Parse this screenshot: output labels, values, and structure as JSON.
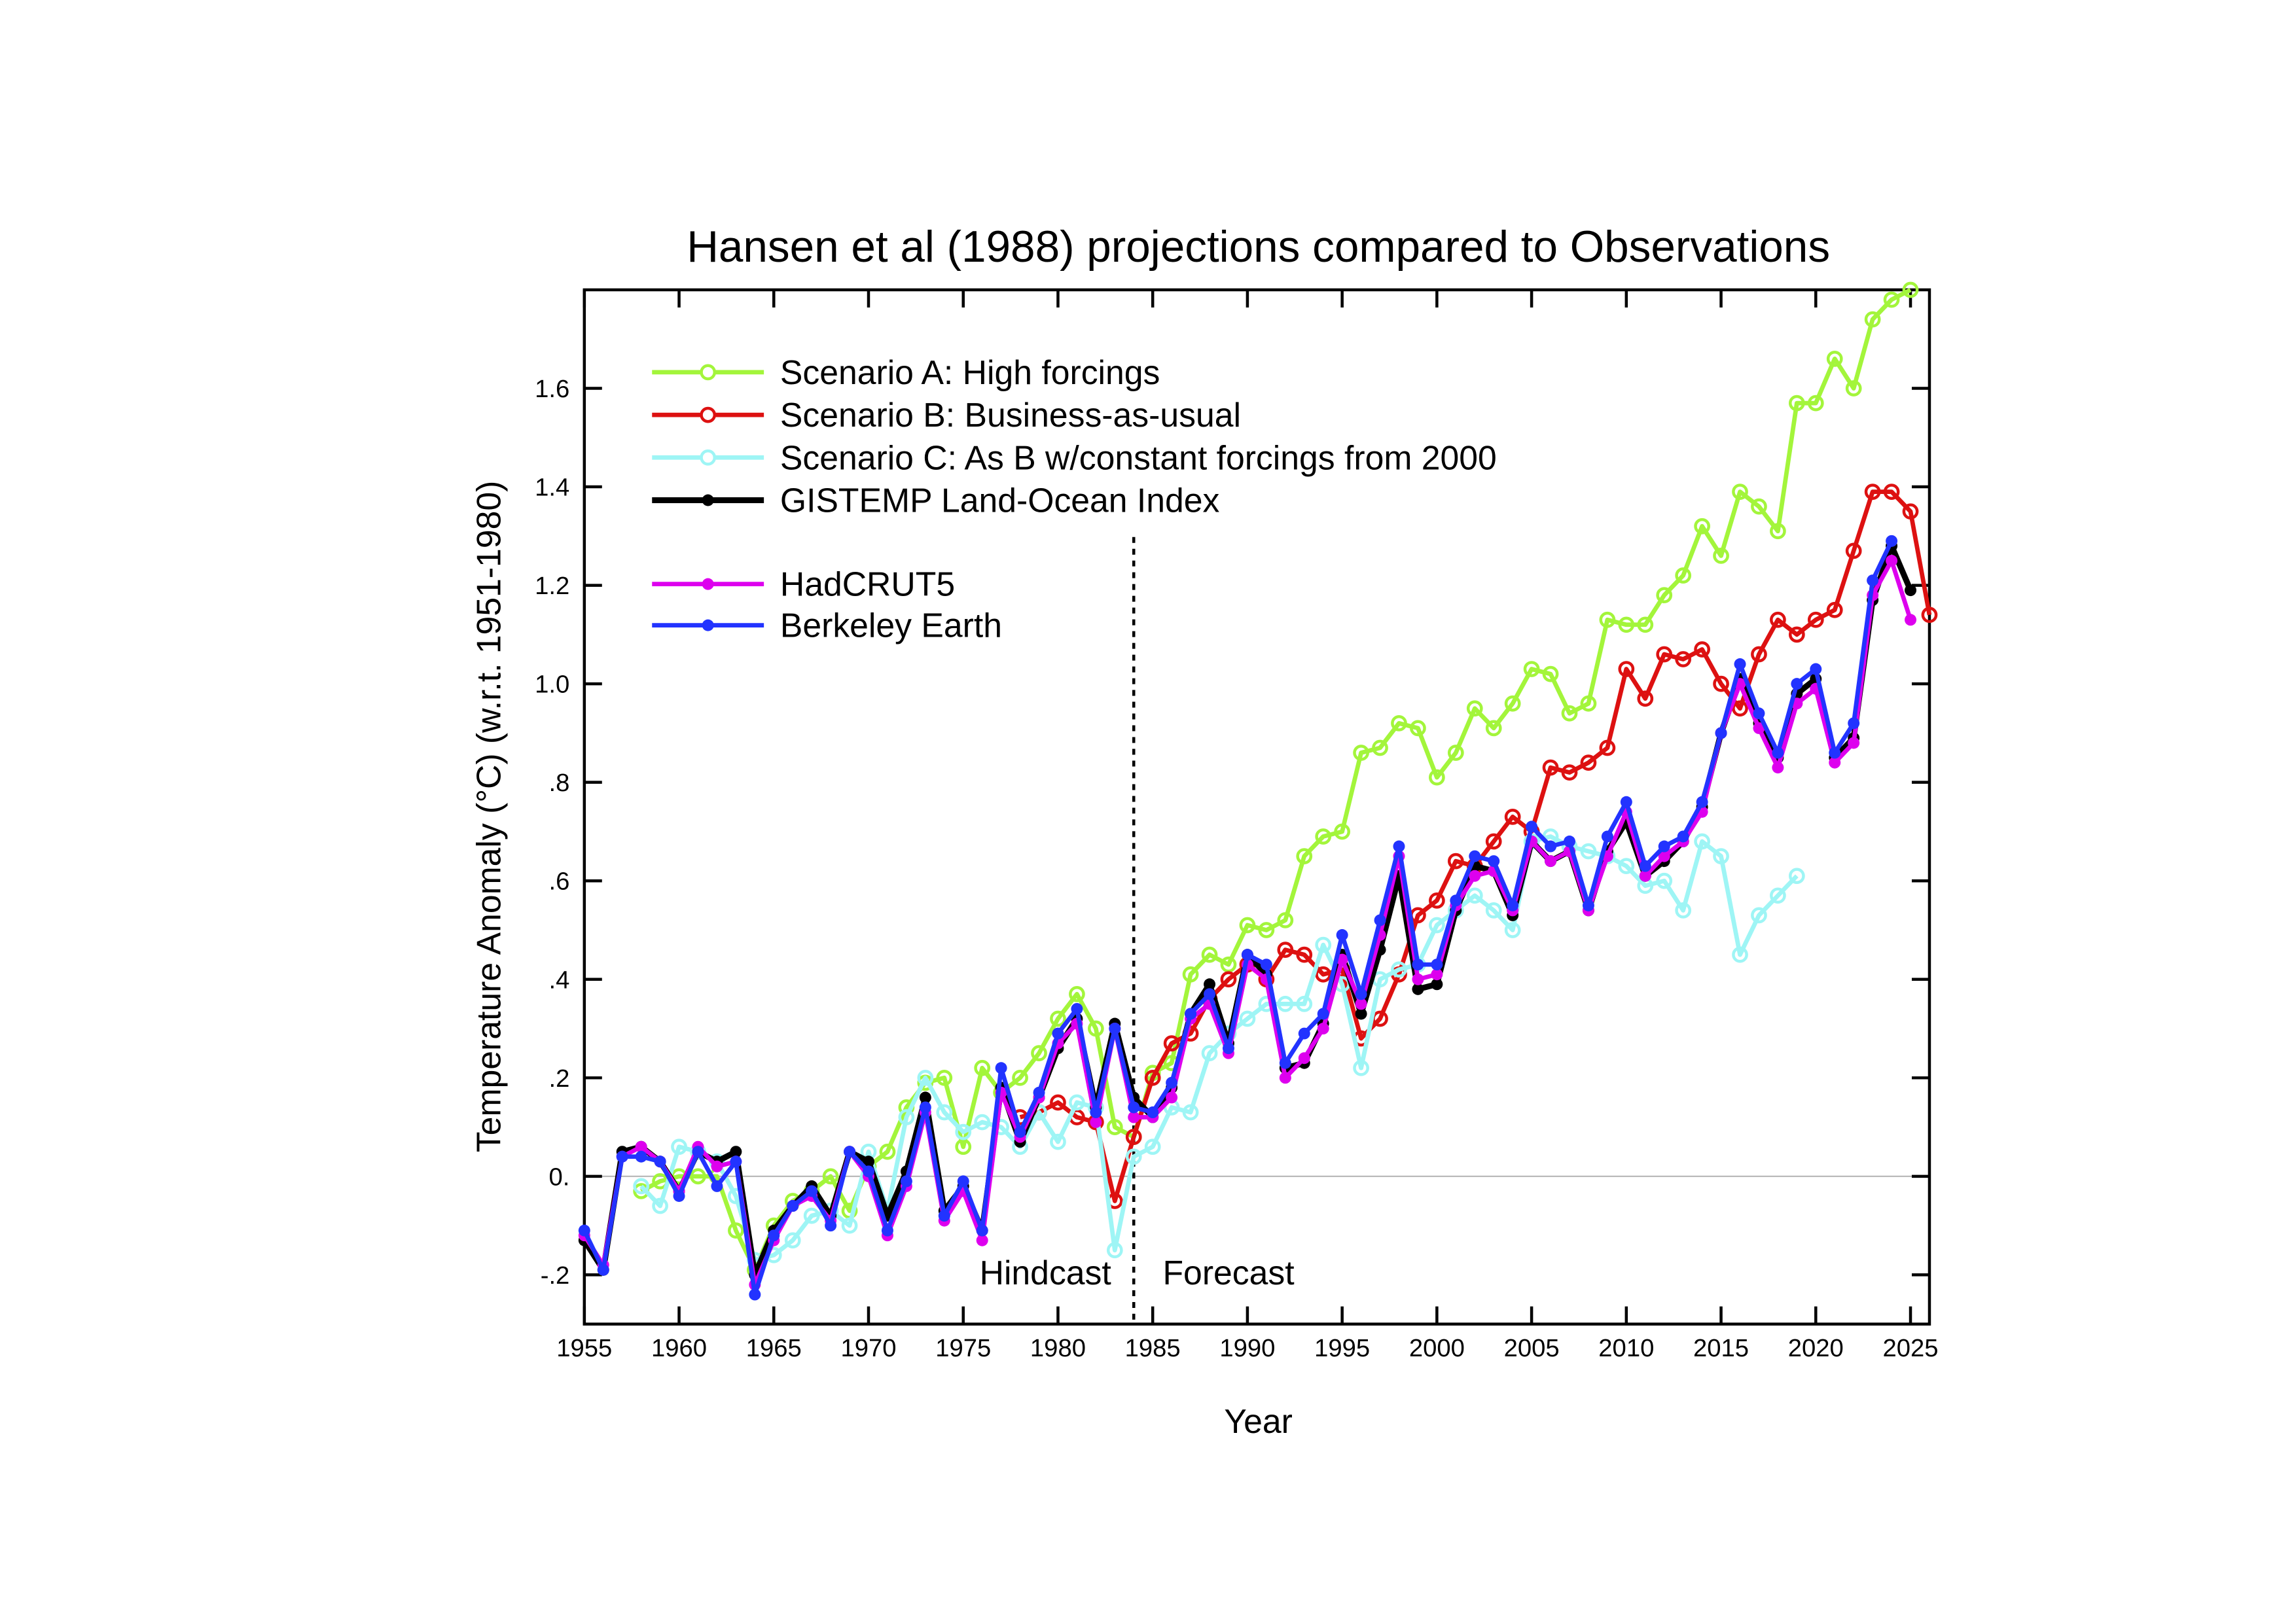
{
  "chart_data": {
    "type": "line",
    "title": "Hansen et al (1988) projections compared to Observations",
    "xlabel": "Year",
    "ylabel": "Temperature Anomaly (°C) (w.r.t. 1951-1980)",
    "ylabel_parts": {
      "before": "Temperature Anomaly (",
      "sup": "o",
      "after": "C) (w.r.t. 1951-1980)"
    },
    "xlim": [
      1955,
      2026
    ],
    "ylim": [
      -0.3,
      1.8
    ],
    "xticks": [
      1955,
      1960,
      1965,
      1970,
      1975,
      1980,
      1985,
      1990,
      1995,
      2000,
      2005,
      2010,
      2015,
      2020,
      2025
    ],
    "xtick_labels": [
      "1955",
      "1960",
      "1965",
      "1970",
      "1975",
      "1980",
      "1985",
      "1990",
      "1995",
      "2000",
      "2005",
      "2010",
      "2015",
      "2020",
      "2025"
    ],
    "yticks": [
      -0.2,
      0,
      0.2,
      0.4,
      0.6,
      0.8,
      1.0,
      1.2,
      1.4,
      1.6
    ],
    "ytick_labels": [
      "-.2",
      "0.",
      ".2",
      ".4",
      ".6",
      ".8",
      "1.0",
      "1.2",
      "1.4",
      "1.6"
    ],
    "zero_line": true,
    "grid": false,
    "legend_position": "top-left",
    "annotations": {
      "divider_year": 1984,
      "hindcast": "Hindcast",
      "forecast": "Forecast"
    },
    "series": [
      {
        "name": "Scenario A: High forcings",
        "color": "#a3f53b",
        "marker": "open-circle",
        "start": 1958,
        "values": [
          -0.03,
          -0.01,
          0.0,
          0.0,
          0.0,
          -0.11,
          -0.19,
          -0.1,
          -0.05,
          -0.03,
          0.0,
          -0.07,
          0.02,
          0.05,
          0.14,
          0.19,
          0.2,
          0.06,
          0.22,
          0.17,
          0.2,
          0.25,
          0.32,
          0.37,
          0.3,
          0.1,
          0.08,
          0.21,
          0.23,
          0.41,
          0.45,
          0.43,
          0.51,
          0.5,
          0.52,
          0.65,
          0.69,
          0.7,
          0.86,
          0.87,
          0.92,
          0.91,
          0.81,
          0.86,
          0.95,
          0.91,
          0.96,
          1.03,
          1.02,
          0.94,
          0.96,
          1.13,
          1.12,
          1.12,
          1.18,
          1.22,
          1.32,
          1.26,
          1.39,
          1.36,
          1.31,
          1.57,
          1.57,
          1.66,
          1.6,
          1.74,
          1.78,
          1.8
        ]
      },
      {
        "name": "Scenario B: Business-as-usual",
        "color": "#dd1111",
        "marker": "open-circle",
        "start": 1978,
        "values": [
          0.12,
          0.13,
          0.15,
          0.12,
          0.11,
          -0.05,
          0.08,
          0.2,
          0.27,
          0.29,
          0.36,
          0.4,
          0.43,
          0.4,
          0.46,
          0.45,
          0.41,
          0.42,
          0.28,
          0.32,
          0.41,
          0.53,
          0.56,
          0.64,
          0.63,
          0.68,
          0.73,
          0.7,
          0.83,
          0.82,
          0.84,
          0.87,
          1.03,
          0.97,
          1.06,
          1.05,
          1.07,
          1.0,
          0.95,
          1.06,
          1.13,
          1.1,
          1.13,
          1.15,
          1.27,
          1.39,
          1.39,
          1.35,
          1.14
        ]
      },
      {
        "name": "Scenario C: As B w/constant forcings from 2000",
        "color": "#9ef5f5",
        "marker": "open-circle",
        "start": 1958,
        "values": [
          -0.02,
          -0.06,
          0.06,
          0.05,
          0.03,
          -0.04,
          -0.17,
          -0.16,
          -0.13,
          -0.08,
          -0.07,
          -0.1,
          0.05,
          -0.07,
          0.12,
          0.2,
          0.13,
          0.09,
          0.11,
          0.1,
          0.06,
          0.13,
          0.07,
          0.15,
          0.14,
          -0.15,
          0.04,
          0.06,
          0.14,
          0.13,
          0.25,
          0.29,
          0.32,
          0.35,
          0.35,
          0.35,
          0.47,
          0.39,
          0.22,
          0.4,
          0.42,
          0.43,
          0.51,
          0.54,
          0.57,
          0.54,
          0.5,
          0.68,
          0.69,
          0.67,
          0.66,
          0.65,
          0.63,
          0.59,
          0.6,
          0.54,
          0.68,
          0.65,
          0.45,
          0.53,
          0.57,
          0.61
        ]
      },
      {
        "name": "GISTEMP Land-Ocean Index",
        "color": "#000000",
        "marker": "filled-circle",
        "start": 1955,
        "values": [
          -0.13,
          -0.19,
          0.05,
          0.06,
          0.03,
          -0.03,
          0.05,
          0.03,
          0.05,
          -0.2,
          -0.11,
          -0.06,
          -0.02,
          -0.08,
          0.05,
          0.03,
          -0.08,
          0.01,
          0.16,
          -0.07,
          -0.02,
          -0.11,
          0.18,
          0.07,
          0.16,
          0.26,
          0.32,
          0.14,
          0.31,
          0.16,
          0.12,
          0.18,
          0.33,
          0.39,
          0.27,
          0.45,
          0.41,
          0.22,
          0.23,
          0.31,
          0.45,
          0.33,
          0.46,
          0.61,
          0.38,
          0.39,
          0.54,
          0.63,
          0.62,
          0.53,
          0.68,
          0.64,
          0.66,
          0.54,
          0.66,
          0.72,
          0.61,
          0.64,
          0.68,
          0.75,
          0.9,
          1.01,
          0.92,
          0.85,
          0.98,
          1.01,
          0.85,
          0.89,
          1.17,
          1.28,
          1.19
        ]
      },
      {
        "name": "HadCRUT5",
        "color": "#dd00ee",
        "marker": "filled-circle",
        "start": 1955,
        "values": [
          -0.12,
          -0.18,
          0.04,
          0.06,
          0.03,
          -0.03,
          0.06,
          0.02,
          0.03,
          -0.22,
          -0.13,
          -0.06,
          -0.04,
          -0.09,
          0.05,
          0.0,
          -0.12,
          -0.02,
          0.13,
          -0.09,
          -0.03,
          -0.13,
          0.17,
          0.08,
          0.16,
          0.27,
          0.31,
          0.11,
          0.3,
          0.12,
          0.12,
          0.16,
          0.32,
          0.35,
          0.25,
          0.43,
          0.4,
          0.2,
          0.24,
          0.3,
          0.44,
          0.35,
          0.49,
          0.65,
          0.4,
          0.41,
          0.55,
          0.61,
          0.62,
          0.54,
          0.68,
          0.64,
          0.66,
          0.54,
          0.65,
          0.74,
          0.61,
          0.65,
          0.68,
          0.74,
          0.9,
          1.0,
          0.91,
          0.83,
          0.96,
          0.99,
          0.84,
          0.88,
          1.18,
          1.25,
          1.13
        ]
      },
      {
        "name": "Berkeley Earth",
        "color": "#2233ff",
        "marker": "filled-circle",
        "start": 1955,
        "values": [
          -0.11,
          -0.19,
          0.04,
          0.04,
          0.03,
          -0.04,
          0.05,
          -0.02,
          0.03,
          -0.24,
          -0.12,
          -0.06,
          -0.03,
          -0.1,
          0.05,
          0.01,
          -0.11,
          -0.01,
          0.14,
          -0.08,
          -0.01,
          -0.11,
          0.22,
          0.09,
          0.17,
          0.29,
          0.34,
          0.13,
          0.3,
          0.14,
          0.13,
          0.19,
          0.33,
          0.37,
          0.26,
          0.45,
          0.43,
          0.23,
          0.29,
          0.33,
          0.49,
          0.37,
          0.52,
          0.67,
          0.43,
          0.43,
          0.56,
          0.65,
          0.64,
          0.55,
          0.71,
          0.67,
          0.68,
          0.55,
          0.69,
          0.76,
          0.63,
          0.67,
          0.69,
          0.76,
          0.9,
          1.04,
          0.94,
          0.86,
          1.0,
          1.03,
          0.86,
          0.92,
          1.21,
          1.29
        ]
      }
    ]
  }
}
